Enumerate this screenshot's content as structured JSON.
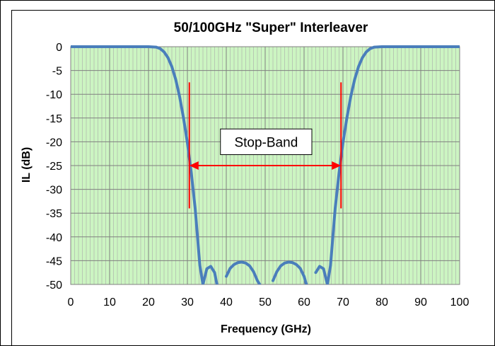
{
  "chart_data": {
    "type": "line",
    "title": "50/100GHz \"Super\" Interleaver",
    "xlabel": "Frequency (GHz)",
    "ylabel": "IL (dB)",
    "xlim": [
      0,
      100
    ],
    "ylim": [
      -50,
      0
    ],
    "x_ticks": [
      0,
      10,
      20,
      30,
      40,
      50,
      60,
      70,
      80,
      90,
      100
    ],
    "y_ticks": [
      0,
      -5,
      -10,
      -15,
      -20,
      -25,
      -30,
      -35,
      -40,
      -45,
      -50
    ],
    "x_tick_labels": [
      "0",
      "10",
      "20",
      "30",
      "40",
      "50",
      "60",
      "70",
      "80",
      "90",
      "100"
    ],
    "y_tick_labels": [
      "0",
      "-5",
      "-10",
      "-15",
      "-20",
      "-25",
      "-30",
      "-35",
      "-40",
      "-45",
      "-50"
    ],
    "minor_grid_step_x": 1,
    "grid": true,
    "plot_background": "#ccf5c2",
    "series": [
      {
        "color": "#4a7ebb",
        "x": [
          0,
          20,
          22,
          23,
          24,
          25,
          26,
          27,
          28,
          29,
          30,
          31,
          32,
          32.6,
          33.2,
          34,
          35,
          36,
          37,
          37.6,
          38.5,
          39.4,
          40,
          41,
          42,
          43,
          44,
          45,
          46,
          47,
          48,
          48.6,
          49.5,
          50.5,
          51.4,
          52,
          53,
          54,
          55,
          56,
          57,
          58,
          59,
          60,
          60.6,
          61.5,
          62.4,
          63,
          64,
          65,
          66,
          66.8,
          67.4,
          68,
          69,
          70,
          71,
          72,
          73,
          74,
          75,
          76,
          77,
          78,
          80,
          100
        ],
        "y": [
          0,
          0,
          -0.1,
          -0.4,
          -1.1,
          -2.3,
          -4.2,
          -6.9,
          -10.5,
          -15,
          -20.2,
          -26.5,
          -34,
          -40,
          -46,
          -50,
          -46.7,
          -46.2,
          -47.5,
          -50,
          -50,
          -50,
          -48.3,
          -46.6,
          -45.8,
          -45.4,
          -45.3,
          -45.5,
          -46.1,
          -47.3,
          -49.2,
          -50,
          -50,
          -50,
          -50,
          -49.2,
          -47.3,
          -46.1,
          -45.5,
          -45.3,
          -45.4,
          -45.8,
          -46.6,
          -48.3,
          -50,
          -50,
          -50,
          -47.5,
          -46.2,
          -46.7,
          -50,
          -46,
          -40,
          -34,
          -26.5,
          -20.2,
          -15,
          -10.5,
          -6.9,
          -4.2,
          -2.3,
          -1.1,
          -0.4,
          -0.1,
          0,
          0
        ]
      }
    ],
    "annotations": {
      "text": "Stop-Band",
      "marker_x": [
        30.5,
        69.5
      ],
      "marker_y_range": [
        -7.5,
        -34
      ],
      "arrow_y": -25,
      "box_x": [
        38.5,
        62
      ],
      "box_y": [
        -17.3,
        -22.7
      ],
      "marker_color": "#ff0000"
    }
  }
}
